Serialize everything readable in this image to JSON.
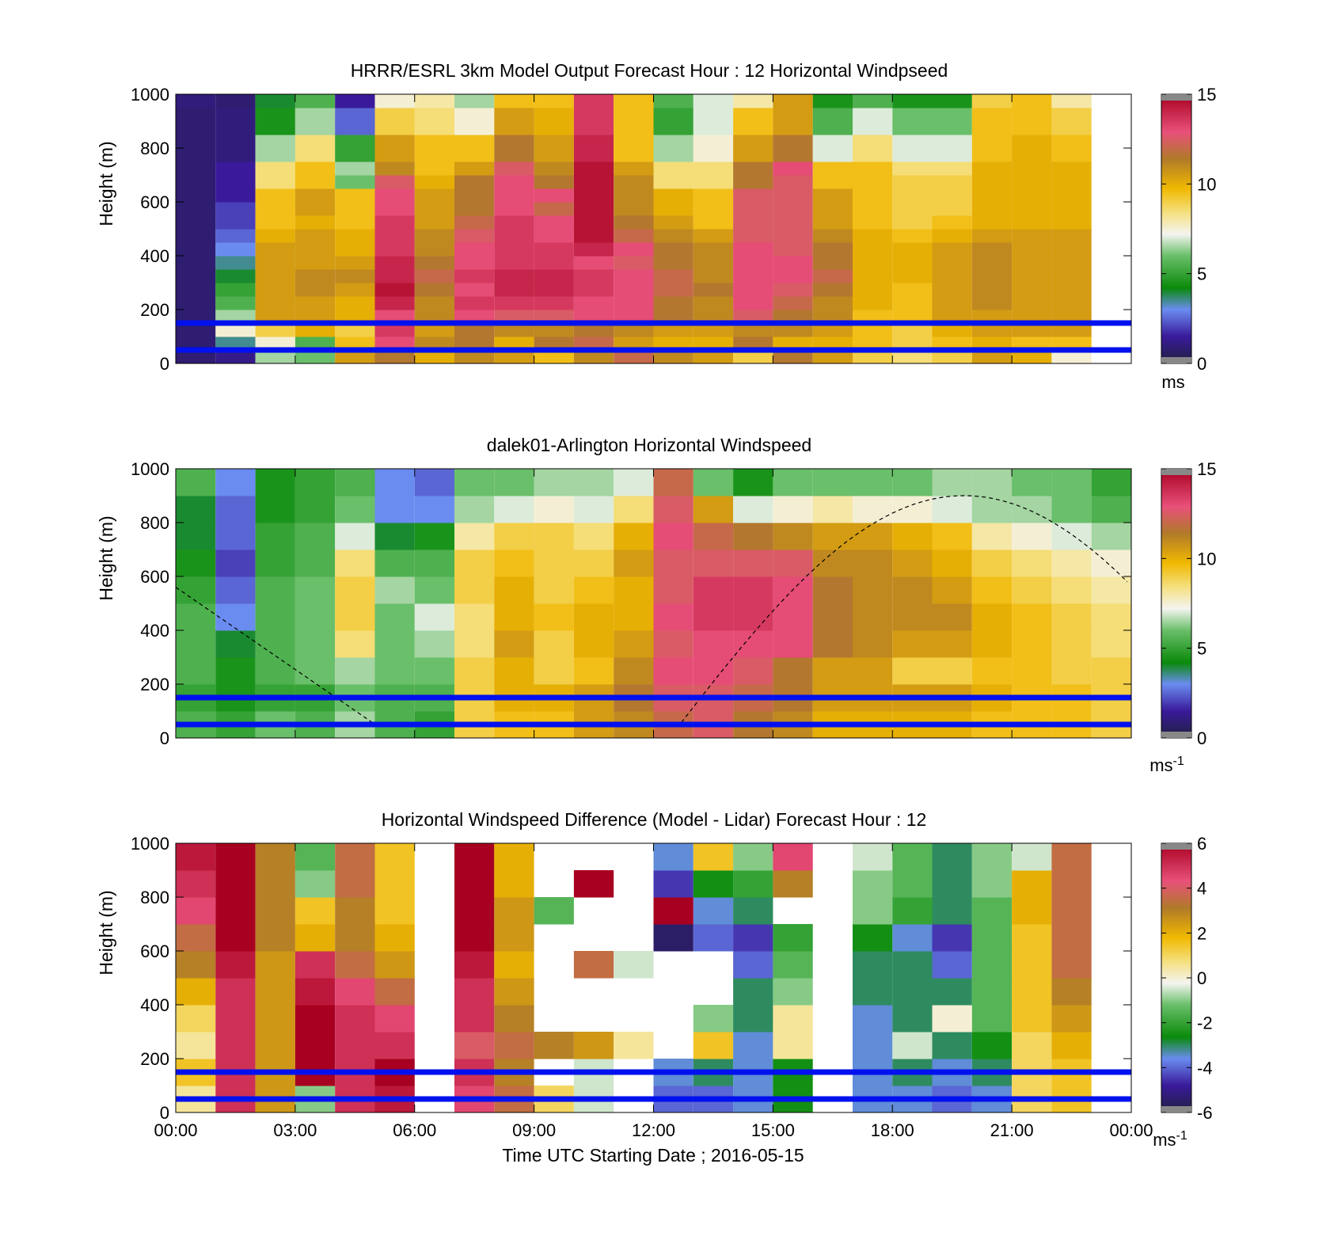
{
  "chart_data": [
    {
      "type": "heatmap",
      "title": "HRRR/ESRL 3km Model Output   Forecast Hour : 12 Horizontal Windpseed",
      "ylabel": "Height (m)",
      "xlabel": "",
      "xlim": [
        0,
        24
      ],
      "ylim": [
        0,
        1000
      ],
      "y_ticks": [
        "0",
        "200",
        "400",
        "600",
        "800",
        "1000"
      ],
      "x_tick_values": [
        0,
        3,
        6,
        9,
        12,
        15,
        18,
        21,
        24
      ],
      "colorbar": {
        "min": 0,
        "max": 15,
        "ticks": [
          "0",
          "5",
          "10",
          "15"
        ],
        "unit": "ms",
        "unit_sup": ""
      },
      "reference_lines_m": [
        150,
        50
      ],
      "grid": false,
      "hour_columns": [
        0,
        1,
        2,
        3,
        4,
        5,
        6,
        7,
        8,
        9,
        10,
        11,
        12,
        13,
        14,
        15,
        16,
        17,
        18,
        19,
        20,
        21,
        22
      ],
      "levels_m": [
        25,
        75,
        125,
        175,
        225,
        275,
        325,
        375,
        425,
        475,
        525,
        575,
        625,
        675,
        725,
        775,
        825,
        875,
        925,
        975
      ],
      "values": [
        [
          0.8,
          1.2,
          6.5,
          6.0,
          10.5,
          11.5,
          10.0,
          11.0,
          10.5,
          9.5,
          11.0,
          12.0,
          11.0,
          10.5,
          9.0,
          11.5,
          10.5,
          9.0,
          8.5,
          9.0,
          10.5,
          10.0,
          7.5
        ],
        [
          0.8,
          3.5,
          7.5,
          5.5,
          9.5,
          13.0,
          11.0,
          11.5,
          10.0,
          11.5,
          12.0,
          10.5,
          10.0,
          10.0,
          11.5,
          10.0,
          10.0,
          9.5,
          9.0,
          9.5,
          10.0,
          9.5,
          9.5
        ],
        [
          0.8,
          7.5,
          9.0,
          10.0,
          9.0,
          13.5,
          10.5,
          11.5,
          11.0,
          11.0,
          11.5,
          11.0,
          10.5,
          10.5,
          11.0,
          11.0,
          10.5,
          9.5,
          9.0,
          10.0,
          10.5,
          10.5,
          10.5
        ],
        [
          0.8,
          6.5,
          10.5,
          10.5,
          10.0,
          13.0,
          11.0,
          13.0,
          12.5,
          12.5,
          13.0,
          13.0,
          11.5,
          11.0,
          12.5,
          11.5,
          11.0,
          9.5,
          9.5,
          10.5,
          10.5,
          10.5,
          10.5
        ],
        [
          0.8,
          5.5,
          10.5,
          10.5,
          10.0,
          14.0,
          11.0,
          13.5,
          13.5,
          13.5,
          13.0,
          13.0,
          11.5,
          11.0,
          13.0,
          12.0,
          11.0,
          10.0,
          9.5,
          10.5,
          11.0,
          10.5,
          10.5
        ],
        [
          0.8,
          5.0,
          10.5,
          11.0,
          10.5,
          14.5,
          11.5,
          13.0,
          14.0,
          14.0,
          13.5,
          13.0,
          12.0,
          11.5,
          13.0,
          12.5,
          11.5,
          10.0,
          9.5,
          10.5,
          11.0,
          10.5,
          10.5
        ],
        [
          0.8,
          4.0,
          10.5,
          11.0,
          11.0,
          14.0,
          12.0,
          13.5,
          14.0,
          14.0,
          13.5,
          13.0,
          12.0,
          11.0,
          13.0,
          13.0,
          12.0,
          10.0,
          10.0,
          10.5,
          11.0,
          10.5,
          10.5
        ],
        [
          0.8,
          3.5,
          10.5,
          10.5,
          10.5,
          14.0,
          11.5,
          13.0,
          13.5,
          13.5,
          13.0,
          12.5,
          11.5,
          11.0,
          13.0,
          13.0,
          11.5,
          10.0,
          10.0,
          10.5,
          11.0,
          10.5,
          10.5
        ],
        [
          0.8,
          3.0,
          10.5,
          10.5,
          10.0,
          13.5,
          11.0,
          13.0,
          13.5,
          13.5,
          14.0,
          13.0,
          11.5,
          11.0,
          13.0,
          12.5,
          11.5,
          10.0,
          10.0,
          10.5,
          11.0,
          10.5,
          10.5
        ],
        [
          0.8,
          2.5,
          10.0,
          10.5,
          10.0,
          13.5,
          11.0,
          12.5,
          13.5,
          13.0,
          14.5,
          12.0,
          11.0,
          10.5,
          12.5,
          12.5,
          11.0,
          10.0,
          9.5,
          10.0,
          10.5,
          10.5,
          10.5
        ],
        [
          0.8,
          2.0,
          9.5,
          10.0,
          9.5,
          13.5,
          10.5,
          12.0,
          13.5,
          13.0,
          14.5,
          11.5,
          10.5,
          9.5,
          12.5,
          12.5,
          10.5,
          9.5,
          9.0,
          9.5,
          10.0,
          10.0,
          10.0
        ],
        [
          0.8,
          2.0,
          9.5,
          10.5,
          9.5,
          13.0,
          10.5,
          11.5,
          13.0,
          12.0,
          14.5,
          11.0,
          10.0,
          9.5,
          12.5,
          12.5,
          10.5,
          9.5,
          9.0,
          9.0,
          10.0,
          10.0,
          10.0
        ],
        [
          0.8,
          1.5,
          9.5,
          10.5,
          9.5,
          13.0,
          10.5,
          11.5,
          13.0,
          13.0,
          14.5,
          11.0,
          10.0,
          9.5,
          12.5,
          12.5,
          10.5,
          9.5,
          9.0,
          9.0,
          10.0,
          10.0,
          10.0
        ],
        [
          0.8,
          1.5,
          8.5,
          9.5,
          6.0,
          12.5,
          10.0,
          11.5,
          13.0,
          11.5,
          14.5,
          11.0,
          8.5,
          8.5,
          11.5,
          12.5,
          9.5,
          9.5,
          9.0,
          9.0,
          10.0,
          10.0,
          10.0
        ],
        [
          0.8,
          1.5,
          8.5,
          9.5,
          6.5,
          11.0,
          9.5,
          10.5,
          12.5,
          11.0,
          14.5,
          10.5,
          8.5,
          8.5,
          11.5,
          13.0,
          9.5,
          9.5,
          8.5,
          8.5,
          10.0,
          10.0,
          10.0
        ],
        [
          0.8,
          1.0,
          6.5,
          8.5,
          5.0,
          10.5,
          9.5,
          9.5,
          11.5,
          10.5,
          14.0,
          9.5,
          6.5,
          7.5,
          10.5,
          11.5,
          7.0,
          8.5,
          7.0,
          7.0,
          9.5,
          10.0,
          9.5
        ],
        [
          0.8,
          1.0,
          6.5,
          8.5,
          5.0,
          10.5,
          9.5,
          9.5,
          11.5,
          10.5,
          14.0,
          9.5,
          6.5,
          7.5,
          10.5,
          11.5,
          7.0,
          8.5,
          7.0,
          7.0,
          9.5,
          10.0,
          9.5
        ],
        [
          0.8,
          1.0,
          4.5,
          6.5,
          2.5,
          9.0,
          8.5,
          7.5,
          10.5,
          10.0,
          13.5,
          9.5,
          5.0,
          7.0,
          9.5,
          10.5,
          5.5,
          7.0,
          6.0,
          6.0,
          9.5,
          9.5,
          9.0
        ],
        [
          0.8,
          1.0,
          4.5,
          6.5,
          2.5,
          9.0,
          8.5,
          7.5,
          10.5,
          10.0,
          13.5,
          9.5,
          5.0,
          7.0,
          9.5,
          10.5,
          5.5,
          7.0,
          6.0,
          6.0,
          9.5,
          9.5,
          9.0
        ],
        [
          1.0,
          0.8,
          4.0,
          5.5,
          1.5,
          7.5,
          8.0,
          6.5,
          9.5,
          9.5,
          13.5,
          9.5,
          5.5,
          7.0,
          8.0,
          10.5,
          4.5,
          5.5,
          4.5,
          4.5,
          9.0,
          9.5,
          8.0
        ]
      ]
    },
    {
      "type": "heatmap",
      "title": "dalek01-Arlington  Horizontal Windspeed",
      "ylabel": "Height (m)",
      "xlabel": "",
      "xlim": [
        0,
        24
      ],
      "ylim": [
        0,
        1000
      ],
      "y_ticks": [
        "0",
        "200",
        "400",
        "600",
        "800",
        "1000"
      ],
      "x_tick_values": [
        0,
        3,
        6,
        9,
        12,
        15,
        18,
        21,
        24
      ],
      "colorbar": {
        "min": 0,
        "max": 15,
        "ticks": [
          "0",
          "5",
          "10",
          "15"
        ],
        "unit": "ms",
        "unit_sup": "-1"
      },
      "reference_lines_m": [
        150,
        50
      ],
      "grid": false,
      "time_hours": [
        0,
        1,
        2,
        3,
        4,
        5,
        6,
        7,
        8,
        9,
        10,
        11,
        12,
        13,
        14,
        15,
        16,
        17,
        18,
        19,
        20,
        21,
        22,
        23
      ],
      "levels_m": [
        50,
        150,
        250,
        350,
        450,
        550,
        650,
        750,
        850,
        950
      ],
      "values": [
        [
          5.5,
          5.0,
          6.0,
          5.5,
          6.5,
          5.5,
          5.0,
          9.0,
          9.5,
          9.5,
          10.5,
          11.0,
          12.0,
          12.5,
          11.5,
          11.0,
          10.0,
          10.0,
          10.0,
          10.0,
          9.5,
          9.5,
          9.5,
          9.0
        ],
        [
          5.0,
          4.5,
          5.0,
          5.0,
          6.0,
          5.5,
          5.5,
          9.0,
          10.0,
          10.0,
          10.5,
          11.5,
          12.5,
          12.5,
          12.0,
          11.5,
          10.5,
          10.5,
          10.5,
          10.5,
          10.0,
          9.5,
          9.5,
          9.0
        ],
        [
          5.5,
          4.5,
          5.5,
          6.0,
          6.5,
          6.0,
          6.0,
          9.0,
          10.0,
          9.0,
          9.5,
          11.0,
          13.0,
          13.0,
          12.5,
          11.5,
          10.5,
          10.5,
          9.0,
          9.0,
          9.5,
          9.5,
          9.0,
          9.0
        ],
        [
          5.5,
          4.0,
          5.5,
          6.0,
          8.5,
          6.0,
          6.5,
          8.5,
          10.5,
          9.0,
          10.0,
          10.5,
          12.5,
          13.0,
          13.0,
          13.0,
          11.5,
          11.0,
          10.5,
          10.5,
          10.0,
          9.5,
          9.0,
          8.5
        ],
        [
          5.5,
          3.0,
          5.5,
          6.0,
          9.0,
          6.0,
          7.0,
          8.5,
          10.0,
          9.5,
          10.0,
          10.0,
          13.0,
          13.5,
          13.5,
          13.0,
          11.5,
          11.0,
          11.0,
          11.0,
          10.0,
          9.5,
          9.0,
          8.5
        ],
        [
          5.0,
          2.5,
          5.5,
          6.0,
          9.0,
          6.5,
          6.0,
          9.0,
          10.0,
          9.0,
          9.5,
          10.0,
          12.5,
          13.5,
          13.5,
          13.0,
          11.5,
          11.0,
          11.0,
          10.5,
          9.5,
          9.0,
          8.5,
          8.0
        ],
        [
          4.5,
          2.0,
          5.0,
          5.5,
          8.5,
          5.5,
          5.5,
          9.0,
          9.5,
          9.0,
          9.0,
          10.5,
          12.5,
          12.5,
          12.5,
          12.5,
          11.0,
          11.0,
          10.5,
          10.0,
          9.0,
          8.5,
          8.0,
          7.5
        ],
        [
          4.0,
          2.5,
          5.0,
          5.5,
          7.0,
          4.0,
          4.5,
          8.0,
          9.0,
          9.0,
          8.5,
          10.0,
          13.0,
          12.0,
          11.5,
          11.0,
          10.5,
          10.5,
          10.0,
          9.5,
          8.0,
          7.5,
          7.0,
          6.5
        ],
        [
          4.0,
          2.5,
          4.5,
          5.0,
          6.0,
          3.0,
          3.0,
          6.5,
          7.0,
          7.5,
          7.0,
          8.5,
          12.5,
          10.5,
          7.0,
          7.5,
          8.0,
          7.5,
          7.5,
          7.0,
          6.5,
          6.5,
          6.0,
          5.5
        ],
        [
          5.5,
          3.0,
          4.5,
          5.0,
          5.5,
          3.0,
          2.5,
          6.0,
          6.0,
          6.5,
          6.5,
          7.0,
          12.0,
          6.0,
          4.5,
          6.0,
          6.0,
          6.0,
          6.0,
          6.5,
          6.5,
          6.0,
          6.0,
          5.0
        ]
      ],
      "dashed_curve": "solar elevation (dashed)"
    },
    {
      "type": "heatmap",
      "title": "Horizontal Windspeed Difference (Model - Lidar) Forecast Hour : 12",
      "ylabel": "Height (m)",
      "xlabel": "Time UTC  Starting Date ; 2016-05-15",
      "xlim": [
        0,
        24
      ],
      "ylim": [
        0,
        1000
      ],
      "y_ticks": [
        "0",
        "200",
        "400",
        "600",
        "800",
        "1000"
      ],
      "x_ticks": [
        "00:00",
        "03:00",
        "06:00",
        "09:00",
        "12:00",
        "15:00",
        "18:00",
        "21:00",
        "00:00"
      ],
      "x_tick_values": [
        0,
        3,
        6,
        9,
        12,
        15,
        18,
        21,
        24
      ],
      "colorbar": {
        "min": -6,
        "max": 6,
        "ticks": [
          "-6",
          "-4",
          "-2",
          "0",
          "2",
          "4",
          "6"
        ],
        "unit": "ms",
        "unit_sup": "-1"
      },
      "reference_lines_m": [
        150,
        50
      ],
      "grid": false,
      "hour_columns": [
        0,
        1,
        2,
        3,
        4,
        5,
        7,
        8,
        9,
        10,
        11,
        12,
        13,
        14,
        15,
        17,
        18,
        19,
        20,
        21,
        22
      ],
      "levels_m": [
        50,
        150,
        250,
        350,
        450,
        550,
        650,
        750,
        850,
        950
      ],
      "values": [
        [
          0.5,
          5.0,
          2.5,
          -1.0,
          5.0,
          5.5,
          4.5,
          3.5,
          1.0,
          -0.5,
          null,
          -4.0,
          -4.0,
          -3.5,
          -2.5,
          -3.5,
          -3.5,
          -4.0,
          -3.5,
          1.0,
          1.5
        ],
        [
          1.5,
          5.0,
          2.5,
          7.0,
          5.0,
          6.0,
          5.0,
          3.0,
          null,
          -0.5,
          null,
          -3.5,
          -3.0,
          -3.5,
          -2.5,
          -3.5,
          -3.0,
          -3.5,
          -3.0,
          1.0,
          1.5
        ],
        [
          0.5,
          5.0,
          2.5,
          7.0,
          5.0,
          5.0,
          4.0,
          3.5,
          3.0,
          2.5,
          0.5,
          null,
          1.5,
          -3.5,
          0.5,
          -3.5,
          -0.5,
          -3.0,
          -2.5,
          1.0,
          2.0
        ],
        [
          1.0,
          5.0,
          2.5,
          7.0,
          5.0,
          4.5,
          5.0,
          3.0,
          null,
          null,
          null,
          null,
          -1.0,
          -3.0,
          0.5,
          -3.5,
          -3.0,
          0.0,
          -1.5,
          1.5,
          2.5
        ],
        [
          2.0,
          5.0,
          2.5,
          5.5,
          4.5,
          3.5,
          5.0,
          2.5,
          null,
          null,
          null,
          null,
          null,
          -3.0,
          -1.0,
          -3.0,
          -3.0,
          -3.0,
          -1.5,
          1.5,
          3.0
        ],
        [
          3.0,
          5.5,
          2.5,
          5.0,
          3.5,
          2.5,
          5.5,
          2.0,
          null,
          3.5,
          -0.5,
          null,
          null,
          -4.0,
          -1.5,
          -3.0,
          -3.0,
          -4.0,
          -1.5,
          1.5,
          3.5
        ],
        [
          3.5,
          6.0,
          3.0,
          2.0,
          3.0,
          2.0,
          6.0,
          2.5,
          null,
          null,
          null,
          -5.5,
          -4.0,
          -4.5,
          -2.0,
          -2.5,
          -3.5,
          -4.5,
          -1.5,
          1.5,
          3.5
        ],
        [
          4.5,
          7.0,
          3.0,
          1.5,
          3.0,
          1.5,
          6.0,
          2.5,
          -1.5,
          null,
          null,
          7.0,
          -3.5,
          -3.0,
          null,
          -1.0,
          -2.0,
          -3.0,
          -1.5,
          2.0,
          3.5
        ],
        [
          5.0,
          7.0,
          3.0,
          -1.0,
          3.5,
          1.5,
          6.5,
          2.0,
          null,
          7.0,
          null,
          -4.5,
          -2.5,
          -2.0,
          3.0,
          -1.0,
          -1.5,
          -3.0,
          -1.0,
          2.0,
          3.5
        ],
        [
          5.5,
          6.5,
          3.0,
          -1.5,
          3.5,
          1.5,
          6.0,
          2.0,
          null,
          null,
          null,
          -3.5,
          1.5,
          -1.0,
          4.5,
          -0.5,
          -1.5,
          -3.0,
          -1.0,
          -0.5,
          3.5
        ]
      ]
    }
  ]
}
